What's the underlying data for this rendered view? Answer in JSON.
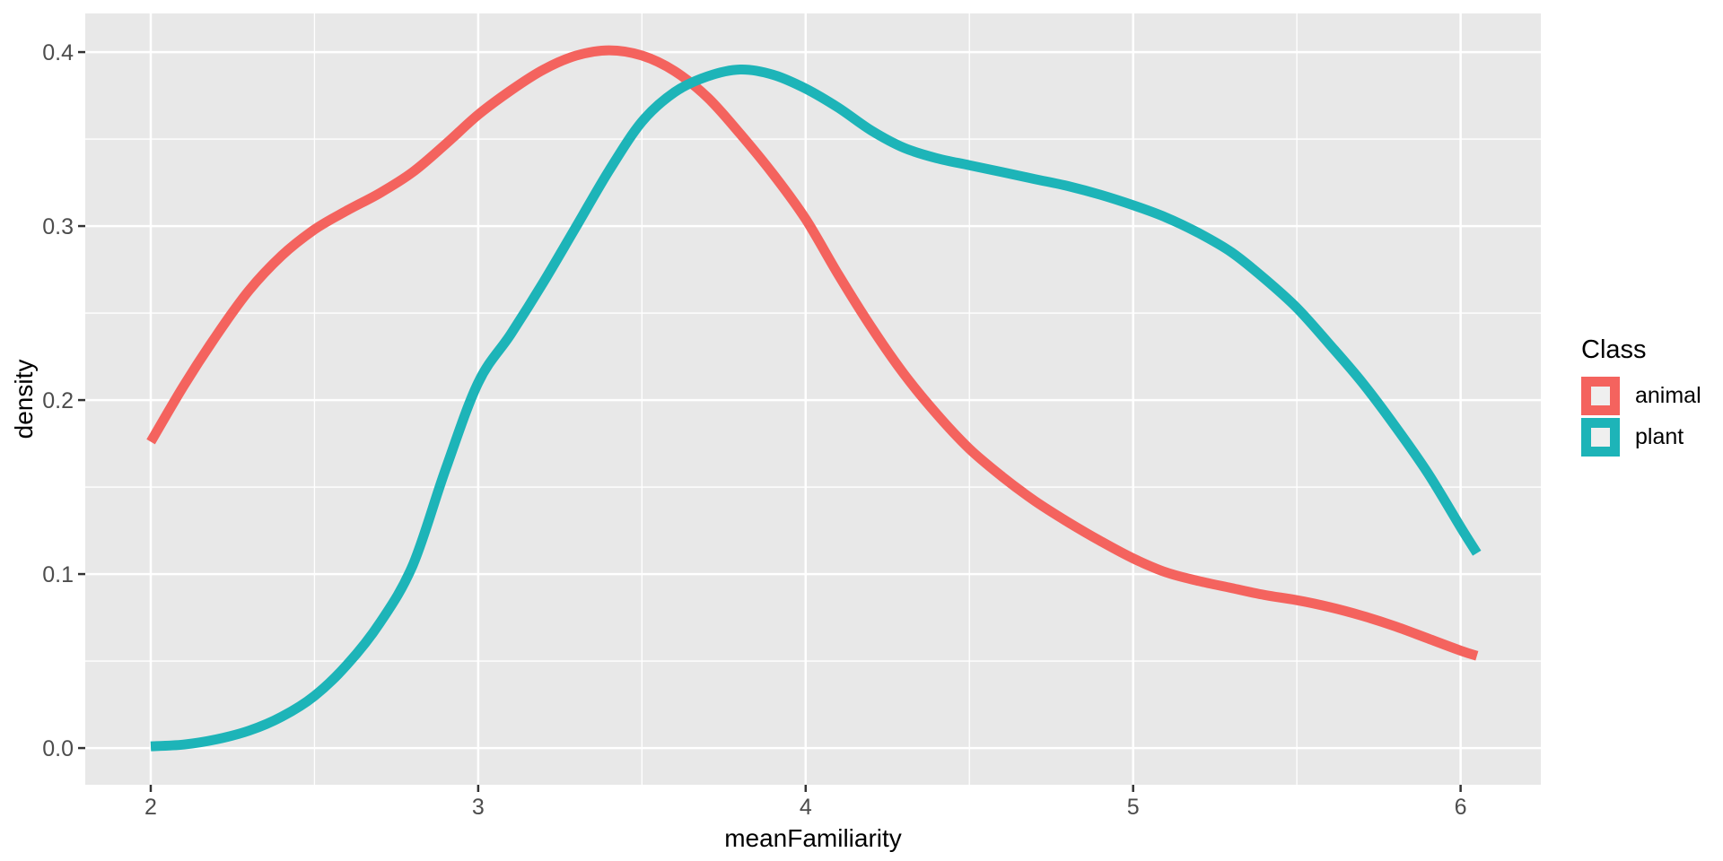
{
  "styles": {
    "background": "#FFFFFF",
    "panel_bg": "#E8E8E8",
    "grid_color": "#FFFFFF",
    "tick_mark_color": "#333333",
    "tick_label_color": "#4D4D4D",
    "axis_title_color": "#000000",
    "legend_key_fill": "#EFEFEF"
  },
  "chart_data": {
    "type": "line",
    "title": "",
    "xlabel": "meanFamiliarity",
    "ylabel": "density",
    "grid": true,
    "legend_position": "right",
    "legend_title": "Class",
    "xlim": [
      1.8,
      6.245
    ],
    "ylim": [
      -0.0211,
      0.4222
    ],
    "x_major_ticks": [
      2,
      3,
      4,
      5,
      6
    ],
    "x_tick_labels": [
      "2",
      "3",
      "4",
      "5",
      "6"
    ],
    "x_minor_ticks": [
      2.5,
      3.5,
      4.5,
      5.5
    ],
    "y_major_ticks": [
      0.0,
      0.1,
      0.2,
      0.3,
      0.4
    ],
    "y_tick_labels": [
      "0.0",
      "0.1",
      "0.2",
      "0.3",
      "0.4"
    ],
    "y_minor_ticks": [
      0.05,
      0.15,
      0.25,
      0.35
    ],
    "series": [
      {
        "name": "animal",
        "color": "#F4635E",
        "x": [
          2.0,
          2.1,
          2.2,
          2.3,
          2.4,
          2.5,
          2.6,
          2.7,
          2.8,
          2.9,
          3.0,
          3.1,
          3.2,
          3.3,
          3.4,
          3.5,
          3.6,
          3.7,
          3.8,
          3.9,
          4.0,
          4.1,
          4.2,
          4.3,
          4.4,
          4.5,
          4.6,
          4.7,
          4.8,
          4.9,
          5.0,
          5.1,
          5.2,
          5.3,
          5.4,
          5.5,
          5.6,
          5.7,
          5.8,
          5.9,
          6.0,
          6.05
        ],
        "y": [
          0.176,
          0.208,
          0.237,
          0.263,
          0.283,
          0.298,
          0.309,
          0.319,
          0.331,
          0.347,
          0.364,
          0.378,
          0.39,
          0.398,
          0.401,
          0.398,
          0.389,
          0.374,
          0.353,
          0.33,
          0.304,
          0.272,
          0.242,
          0.215,
          0.192,
          0.172,
          0.156,
          0.142,
          0.13,
          0.119,
          0.109,
          0.101,
          0.096,
          0.092,
          0.088,
          0.085,
          0.081,
          0.076,
          0.07,
          0.063,
          0.056,
          0.053
        ]
      },
      {
        "name": "plant",
        "color": "#1DB4B8",
        "x": [
          2.0,
          2.1,
          2.2,
          2.3,
          2.4,
          2.5,
          2.6,
          2.7,
          2.8,
          2.9,
          3.0,
          3.1,
          3.2,
          3.3,
          3.4,
          3.5,
          3.6,
          3.7,
          3.8,
          3.9,
          4.0,
          4.1,
          4.2,
          4.3,
          4.4,
          4.5,
          4.6,
          4.7,
          4.8,
          4.9,
          5.0,
          5.1,
          5.2,
          5.3,
          5.4,
          5.5,
          5.6,
          5.7,
          5.8,
          5.9,
          6.0,
          6.05
        ],
        "y": [
          0.001,
          0.002,
          0.005,
          0.01,
          0.018,
          0.03,
          0.048,
          0.072,
          0.105,
          0.16,
          0.21,
          0.238,
          0.268,
          0.3,
          0.332,
          0.36,
          0.377,
          0.386,
          0.39,
          0.387,
          0.379,
          0.368,
          0.355,
          0.345,
          0.339,
          0.335,
          0.331,
          0.327,
          0.323,
          0.318,
          0.312,
          0.305,
          0.296,
          0.285,
          0.27,
          0.253,
          0.232,
          0.21,
          0.185,
          0.158,
          0.127,
          0.112
        ]
      }
    ]
  }
}
